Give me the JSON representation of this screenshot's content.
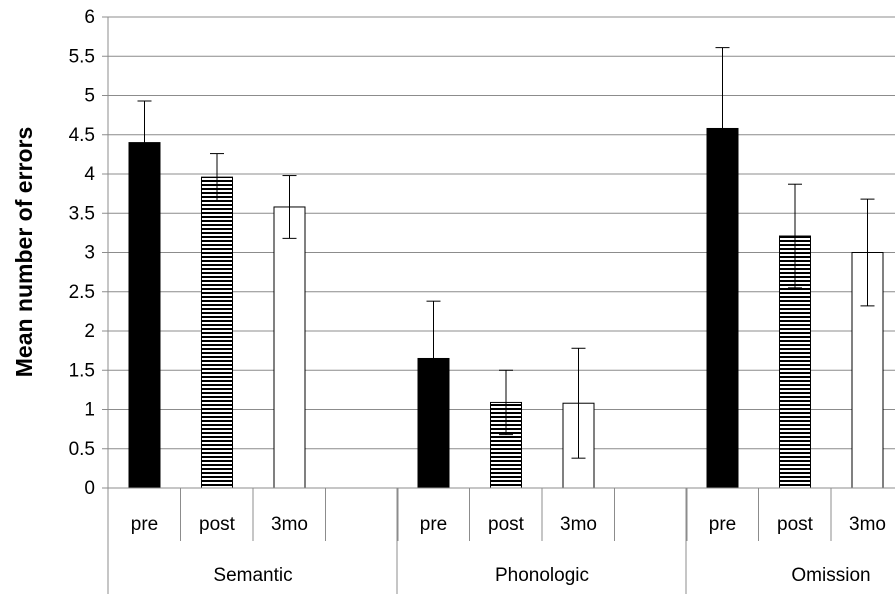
{
  "chart_data": {
    "type": "bar",
    "title": "",
    "xlabel": "",
    "ylabel": "Mean number of errors",
    "ylim": [
      0,
      6
    ],
    "yticks": [
      "0",
      "0.5",
      "1",
      "1.5",
      "2",
      "2.5",
      "3",
      "3.5",
      "4",
      "4.5",
      "5",
      "5.5",
      "6"
    ],
    "grid": true,
    "groups": [
      "Semantic",
      "Phonologic",
      "Omission"
    ],
    "categories": [
      "pre",
      "post",
      "3mo"
    ],
    "series": [
      {
        "category": "pre",
        "fill": "solid-black",
        "color": "#000000",
        "values": [
          4.4,
          1.65,
          4.58
        ],
        "error": [
          0.53,
          0.73,
          1.03
        ]
      },
      {
        "category": "post",
        "fill": "horizontal-stripes",
        "color": "#000000",
        "values": [
          3.96,
          1.09,
          3.21
        ],
        "error": [
          0.3,
          0.41,
          0.66
        ]
      },
      {
        "category": "3mo",
        "fill": "white",
        "color": "#ffffff",
        "values": [
          3.58,
          1.08,
          3.0
        ],
        "error": [
          0.4,
          0.7,
          0.68
        ]
      }
    ]
  }
}
